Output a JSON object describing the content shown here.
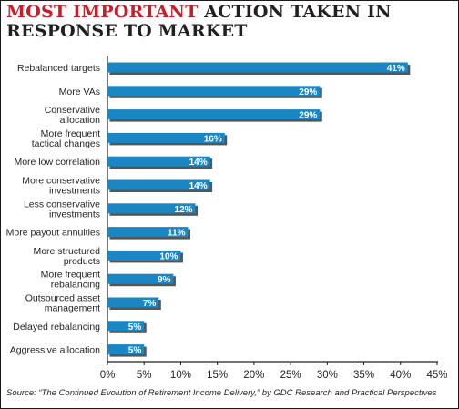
{
  "header": {
    "title_highlight": "MOST IMPORTANT",
    "title_rest": " ACTION TAKEN IN RESPONSE TO MARKET"
  },
  "colors": {
    "title_highlight": "#c4202a",
    "bar": "#1a87c4",
    "bar_shadow": "#555555",
    "text": "#231f20"
  },
  "chart_data": {
    "type": "bar",
    "orientation": "horizontal",
    "categories": [
      [
        "Rebalanced targets"
      ],
      [
        "More VAs"
      ],
      [
        "Conservative",
        "allocation"
      ],
      [
        "More frequent",
        "tactical changes"
      ],
      [
        "More low correlation"
      ],
      [
        "More conservative",
        "investments"
      ],
      [
        "Less conservative",
        "investments"
      ],
      [
        "More payout annuities"
      ],
      [
        "More structured",
        "products"
      ],
      [
        "More frequent",
        "rebalancing"
      ],
      [
        "Outsourced asset",
        "management"
      ],
      [
        "Delayed rebalancing"
      ],
      [
        "Aggressive allocation"
      ]
    ],
    "values": [
      41,
      29,
      29,
      16,
      14,
      14,
      12,
      11,
      10,
      9,
      7,
      5,
      5
    ],
    "value_labels": [
      "41%",
      "29%",
      "29%",
      "16%",
      "14%",
      "14%",
      "12%",
      "11%",
      "10%",
      "9%",
      "7%",
      "5%",
      "5%"
    ],
    "xlim": [
      0,
      45
    ],
    "xticks": [
      0,
      5,
      10,
      15,
      20,
      25,
      30,
      35,
      40,
      45
    ],
    "xtick_labels": [
      "0%",
      "5%",
      "10%",
      "15%",
      "20%",
      "25%",
      "30%",
      "35%",
      "40%",
      "45%"
    ],
    "grid": false,
    "legend": "none"
  },
  "footer": {
    "source_prefix": "Source: ",
    "source_text": "“The Continued Evolution of Retirement Income Delivery,” by GDC Research and Practical Perspectives"
  }
}
